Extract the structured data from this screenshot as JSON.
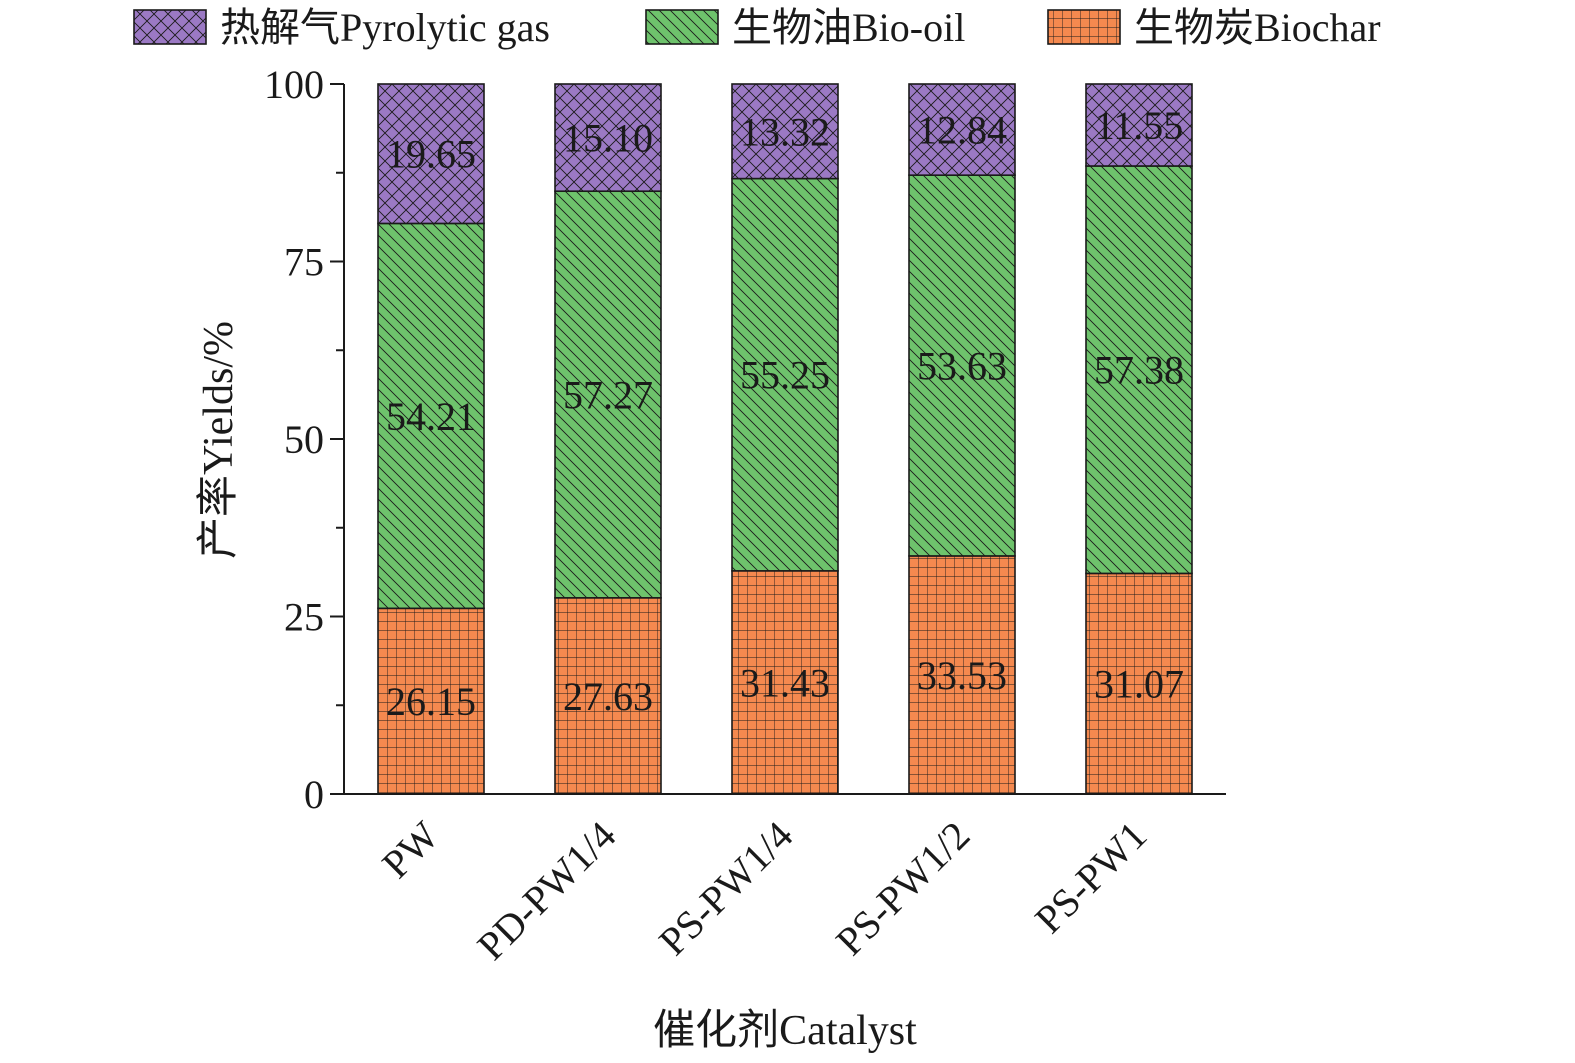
{
  "chart_data": {
    "type": "bar",
    "stacked": true,
    "categories": [
      "PW",
      "PD-PW1/4",
      "PS-PW1/4",
      "PS-PW1/2",
      "PS-PW1"
    ],
    "series": [
      {
        "name": "生物炭Biochar",
        "values": [
          26.15,
          27.63,
          31.43,
          33.53,
          31.07
        ],
        "color": "#f4894f",
        "pattern": "grid"
      },
      {
        "name": "生物油Bio-oil",
        "values": [
          54.21,
          57.27,
          55.25,
          53.63,
          57.38
        ],
        "color": "#6ec36c",
        "pattern": "diagonal"
      },
      {
        "name": "热解气Pyrolytic gas",
        "values": [
          19.65,
          15.1,
          13.32,
          12.84,
          11.55
        ],
        "color": "#9b79c4",
        "pattern": "crosshatch"
      }
    ],
    "data_labels": [
      [
        "26.15",
        "27.63",
        "31.43",
        "33.53",
        "31.07"
      ],
      [
        "54.21",
        "57.27",
        "55.25",
        "53.63",
        "57.38"
      ],
      [
        "19.65",
        "15.10",
        "13.32",
        "12.84",
        "11.55"
      ]
    ],
    "legend_order": [
      2,
      1,
      0
    ],
    "legend_position": "top",
    "ylim": [
      0,
      100
    ],
    "yticks": [
      "0",
      "25",
      "50",
      "75",
      "100"
    ],
    "xlabel": "催化剂Catalyst",
    "ylabel": "产率Yields/%",
    "grid": false
  }
}
